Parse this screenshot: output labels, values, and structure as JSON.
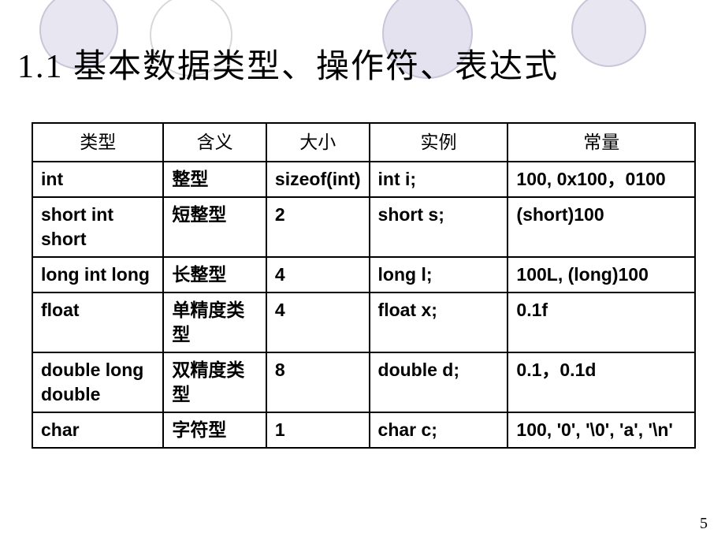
{
  "decorCircles": {
    "c1": {
      "bg": "#e8e6f0",
      "border": "#c8c6d8"
    },
    "c2": {
      "bg": "transparent",
      "border": "#d8d8d8"
    },
    "c3": {
      "bg": "#e4e2ee",
      "border": "#c8c6d8"
    },
    "c4": {
      "bg": "#e8e6f0",
      "border": "#c8c6d8"
    }
  },
  "title": "1.1 基本数据类型、操作符、表达式",
  "table": {
    "headers": {
      "type": "类型",
      "meaning": "含义",
      "size": "大小",
      "example": "实例",
      "constant": "常量"
    },
    "rows": {
      "r0": {
        "type": "int",
        "meaning": "整型",
        "size": "sizeof(int)",
        "example": "int i;",
        "constant": "100, 0x100，0100"
      },
      "r1": {
        "type": "short int short",
        "meaning": "短整型",
        "size": "2",
        "example": "short s;",
        "constant": "(short)100"
      },
      "r2": {
        "type": "long int long",
        "meaning": "长整型",
        "size": " 4",
        "example": "long l;",
        "constant": "100L, (long)100"
      },
      "r3": {
        "type": "float",
        "meaning": "单精度类型",
        "size": "4",
        "example": "float x;",
        "constant": "0.1f"
      },
      "r4": {
        "type": "double long double",
        "meaning": "双精度类型",
        "size": "8",
        "example": "double d;",
        "constant": "0.1，0.1d"
      },
      "r5": {
        "type": "char",
        "meaning": "字符型",
        "size": "1",
        "example": "char c;",
        "constant": "100, '0', '\\0', 'a', '\\n'"
      }
    }
  },
  "pageNumber": "5",
  "style": {
    "titleFontSize": 42,
    "titleColor": "#000000",
    "cellFontSize": 23,
    "borderColor": "#000000",
    "background": "#ffffff"
  }
}
